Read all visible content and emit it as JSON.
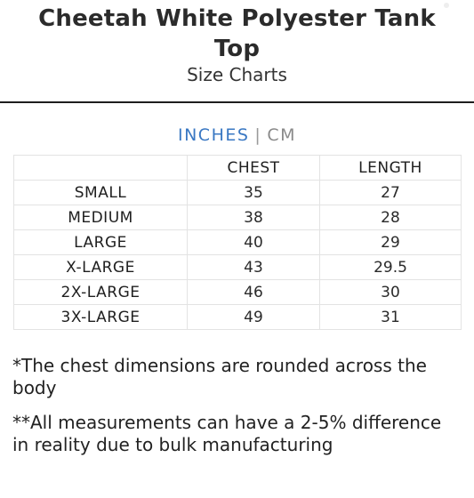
{
  "header": {
    "title": "Cheetah White Polyester Tank Top",
    "subtitle": "Size Charts"
  },
  "unit_toggle": {
    "active": "INCHES",
    "separator": "|",
    "inactive": "CM"
  },
  "table": {
    "columns": [
      "",
      "CHEST",
      "LENGTH"
    ],
    "rows": [
      {
        "size": "SMALL",
        "chest": "35",
        "length": "27"
      },
      {
        "size": "MEDIUM",
        "chest": "38",
        "length": "28"
      },
      {
        "size": "LARGE",
        "chest": "40",
        "length": "29"
      },
      {
        "size": "X-LARGE",
        "chest": "43",
        "length": "29.5"
      },
      {
        "size": "2X-LARGE",
        "chest": "46",
        "length": "30"
      },
      {
        "size": "3X-LARGE",
        "chest": "49",
        "length": "31"
      }
    ]
  },
  "notes": [
    "*The chest dimensions are rounded across the body",
    "**All measurements can have a 2-5% difference in reality due to bulk manufacturing"
  ],
  "colors": {
    "accent": "#3a78c3",
    "divider": "#1e1e1e",
    "grid": "#e3e3e3"
  }
}
